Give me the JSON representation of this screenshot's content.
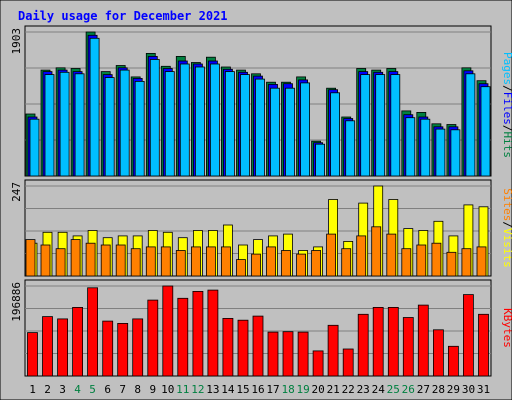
{
  "chart_data": {
    "type": "bar",
    "title": "Daily usage for December 2021",
    "x": [
      "1",
      "2",
      "3",
      "4",
      "5",
      "6",
      "7",
      "8",
      "9",
      "10",
      "11",
      "12",
      "13",
      "14",
      "15",
      "16",
      "17",
      "18",
      "19",
      "20",
      "21",
      "22",
      "23",
      "24",
      "25",
      "26",
      "27",
      "28",
      "29",
      "30",
      "31"
    ],
    "weekend_days": [
      "4",
      "5",
      "11",
      "12",
      "18",
      "19",
      "25",
      "26"
    ],
    "panels": [
      {
        "id": "hits",
        "ylabel_parts": [
          "Pages",
          "/",
          "Files",
          "/",
          "Hits"
        ],
        "ymax_label": "1903",
        "ylim": [
          0,
          1903
        ],
        "grid": true,
        "series": [
          {
            "name": "Hits",
            "color": "#008040",
            "values": [
              820,
              1400,
              1430,
              1420,
              1903,
              1380,
              1460,
              1310,
              1620,
              1450,
              1580,
              1500,
              1570,
              1440,
              1400,
              1350,
              1240,
              1240,
              1310,
              460,
              1160,
              780,
              1420,
              1400,
              1420,
              860,
              840,
              690,
              680,
              1430,
              1260
            ]
          },
          {
            "name": "Files",
            "color": "#0000ff",
            "values": [
              780,
              1380,
              1400,
              1380,
              1860,
              1340,
              1430,
              1290,
              1580,
              1420,
              1520,
              1480,
              1520,
              1410,
              1370,
              1320,
              1210,
              1220,
              1270,
              440,
              1140,
              760,
              1380,
              1370,
              1380,
              810,
              780,
              650,
              650,
              1390,
              1220
            ]
          },
          {
            "name": "Pages",
            "color": "#00bfff",
            "values": [
              750,
              1340,
              1370,
              1350,
              1820,
              1300,
              1400,
              1250,
              1540,
              1380,
              1480,
              1440,
              1480,
              1380,
              1340,
              1280,
              1160,
              1160,
              1230,
              420,
              1100,
              730,
              1340,
              1340,
              1340,
              770,
              750,
              620,
              610,
              1350,
              1180
            ]
          }
        ]
      },
      {
        "id": "visits",
        "ylabel_parts": [
          "Sites",
          "/",
          "Visits"
        ],
        "ymax_label": "247",
        "ylim": [
          0,
          247
        ],
        "grid": true,
        "series": [
          {
            "name": "Visits",
            "color": "#ffff00",
            "values": [
              90,
              120,
              120,
              110,
              125,
              105,
              110,
              110,
              125,
              120,
              105,
              125,
              125,
              140,
              85,
              100,
              110,
              115,
              70,
              80,
              210,
              95,
              200,
              247,
              210,
              130,
              125,
              150,
              110,
              195,
              190
            ]
          },
          {
            "name": "Sites",
            "color": "#ff8000",
            "values": [
              100,
              85,
              75,
              100,
              90,
              85,
              85,
              75,
              80,
              80,
              70,
              80,
              80,
              80,
              45,
              60,
              80,
              70,
              60,
              70,
              115,
              75,
              110,
              135,
              115,
              75,
              85,
              90,
              65,
              75,
              80
            ]
          }
        ]
      },
      {
        "id": "kbytes",
        "ylabel_parts": [
          "KBytes"
        ],
        "ymax_label": "196886",
        "ylim": [
          0,
          196886
        ],
        "grid": true,
        "series": [
          {
            "name": "KBytes",
            "color": "#ff0000",
            "values": [
              95000,
              130000,
              125000,
              150000,
              193000,
              120000,
              115000,
              125000,
              166000,
              196886,
              170000,
              185000,
              188000,
              126000,
              122000,
              131000,
              96000,
              97000,
              96000,
              55000,
              111000,
              59000,
              135000,
              150000,
              150000,
              128000,
              155000,
              101000,
              65000,
              178000,
              135000
            ]
          }
        ]
      }
    ]
  }
}
